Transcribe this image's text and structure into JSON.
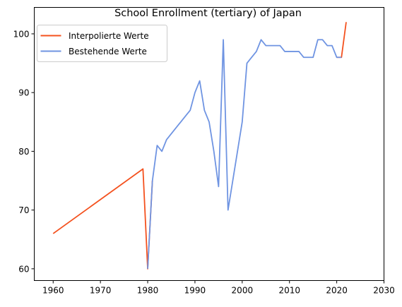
{
  "chart_data": {
    "type": "line",
    "title": "School Enrollment (tertiary) of Japan",
    "xlabel": "",
    "ylabel": "",
    "xlim": [
      1956,
      2030
    ],
    "ylim": [
      58,
      104.5
    ],
    "xticks": [
      1960,
      1970,
      1980,
      1990,
      2000,
      2010,
      2020,
      2030
    ],
    "yticks": [
      60,
      70,
      80,
      90,
      100
    ],
    "grid": false,
    "legend_position": "top-left",
    "series": [
      {
        "name": "Interpolierte Werte",
        "color": "#f4511e",
        "x": [
          1960,
          1979,
          1980,
          1981,
          2020,
          2021,
          2022
        ],
        "y": [
          66,
          77,
          60,
          75,
          96,
          96,
          102
        ],
        "segments": [
          [
            0,
            3
          ],
          [
            4,
            6
          ]
        ]
      },
      {
        "name": "Bestehende Werte",
        "color": "#6f94e2",
        "x": [
          1980,
          1981,
          1982,
          1983,
          1984,
          1985,
          1986,
          1987,
          1988,
          1989,
          1990,
          1991,
          1992,
          1993,
          1994,
          1995,
          1996,
          1997,
          1998,
          1999,
          2000,
          2001,
          2002,
          2003,
          2004,
          2005,
          2006,
          2007,
          2008,
          2009,
          2010,
          2011,
          2012,
          2013,
          2014,
          2015,
          2016,
          2017,
          2018,
          2019,
          2020,
          2021
        ],
        "y": [
          60,
          75,
          81,
          80,
          82,
          83,
          84,
          85,
          86,
          87,
          90,
          92,
          87,
          85,
          80,
          74,
          99,
          70,
          75,
          80,
          85,
          95,
          96,
          97,
          99,
          98,
          98,
          98,
          98,
          97,
          97,
          97,
          97,
          96,
          96,
          96,
          99,
          99,
          98,
          98,
          96,
          96
        ]
      }
    ]
  }
}
